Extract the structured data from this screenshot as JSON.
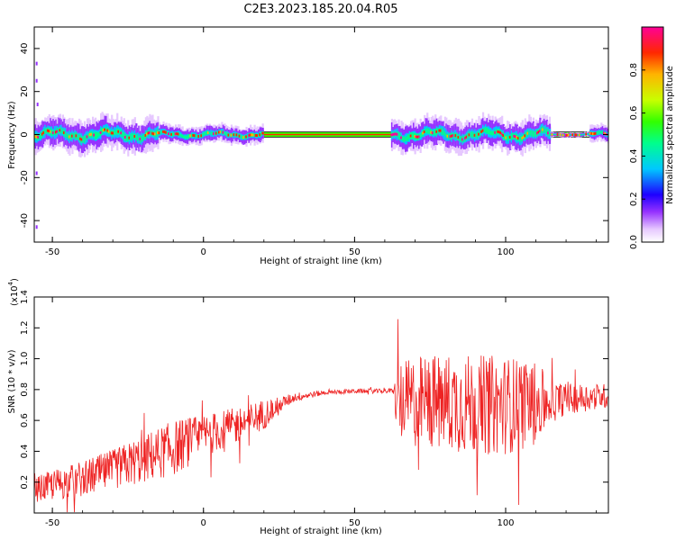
{
  "title": "C2E3.2023.185.20.04.R05",
  "chart_data": [
    {
      "type": "heatmap",
      "xlabel": "Height of straight line (km)",
      "ylabel": "Frequency (Hz)",
      "xlim": [
        -56,
        134
      ],
      "ylim": [
        -50,
        50
      ],
      "x_ticks": [
        "-50",
        "0",
        "50",
        "100"
      ],
      "x_tick_values": [
        -50,
        0,
        50,
        100
      ],
      "y_ticks": [
        "40",
        "20",
        "0",
        "-20",
        "-40"
      ],
      "y_tick_values": [
        40,
        20,
        0,
        -20,
        -40
      ],
      "ridge_frequency_hz": 0,
      "colorbar": {
        "label": "Normalized spectral amplitude",
        "range": [
          0,
          1
        ],
        "ticks": [
          "0.0",
          "0.2",
          "0.4",
          "0.6",
          "0.8"
        ],
        "tick_values": [
          0,
          0.2,
          0.4,
          0.6,
          0.8
        ],
        "colormap": [
          "#ffffff",
          "#e6c8ff",
          "#9632ff",
          "#1e00ff",
          "#00c8ff",
          "#00ff8c",
          "#32ff00",
          "#c8ff00",
          "#ffb400",
          "#ff2800",
          "#ff0096"
        ]
      },
      "grid": false
    },
    {
      "type": "line",
      "xlabel": "Height of straight line (km)",
      "ylabel": "SNR (10 * v/v)",
      "scale_label": "(x10",
      "scale_exp": "4",
      "scale_close": ")",
      "xlim": [
        -56,
        134
      ],
      "ylim": [
        0,
        1.4
      ],
      "x_ticks": [
        "-50",
        "0",
        "50",
        "100"
      ],
      "x_tick_values": [
        -50,
        0,
        50,
        100
      ],
      "y_ticks": [
        "0.2",
        "0.4",
        "0.6",
        "0.8",
        "1.0",
        "1.2",
        "1.4"
      ],
      "y_tick_values": [
        0.2,
        0.4,
        0.6,
        0.8,
        1.0,
        1.2,
        1.4
      ],
      "series": [
        {
          "color": "#ee2222",
          "envelope_x": [
            -56,
            -50,
            -40,
            -30,
            -20,
            -10,
            0,
            10,
            20,
            25,
            30,
            40,
            50,
            60,
            63,
            64,
            70,
            80,
            90,
            100,
            110,
            115,
            120,
            134
          ],
          "envelope_mean": [
            0.15,
            0.18,
            0.22,
            0.28,
            0.35,
            0.42,
            0.5,
            0.56,
            0.64,
            0.7,
            0.75,
            0.78,
            0.79,
            0.79,
            0.79,
            0.72,
            0.72,
            0.72,
            0.7,
            0.7,
            0.71,
            0.72,
            0.74,
            0.76
          ],
          "envelope_amp": [
            0.08,
            0.1,
            0.12,
            0.13,
            0.16,
            0.18,
            0.14,
            0.12,
            0.1,
            0.05,
            0.03,
            0.015,
            0.015,
            0.015,
            0.02,
            0.25,
            0.3,
            0.32,
            0.33,
            0.32,
            0.28,
            0.14,
            0.1,
            0.08
          ]
        }
      ],
      "grid": false
    }
  ]
}
